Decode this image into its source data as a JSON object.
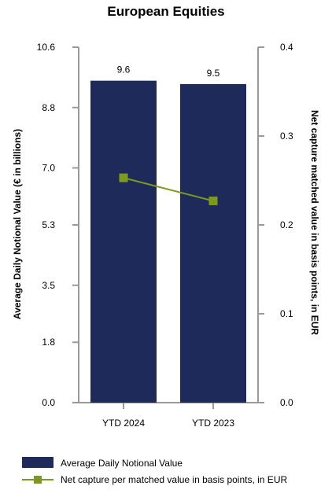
{
  "chart_data": {
    "type": "bar",
    "title": "European Equities",
    "categories": [
      "YTD 2024",
      "YTD 2023"
    ],
    "series": [
      {
        "name": "Average Daily Notional Value",
        "type": "bar",
        "axis": "left",
        "values": [
          9.6,
          9.5
        ],
        "data_labels": [
          "9.6",
          "9.5"
        ],
        "color": "#1e2a5a"
      },
      {
        "name": "Net capture per matched value in basis points, in EUR",
        "type": "line",
        "axis": "right",
        "values": [
          0.253,
          0.227
        ],
        "color": "#7c9a1e"
      }
    ],
    "y_left": {
      "label": "Average Daily Notional Value (€ in billions)",
      "min": 0,
      "max": 10.6,
      "ticks": [
        0.0,
        1.8,
        3.5,
        5.3,
        7.0,
        8.8,
        10.6
      ],
      "tick_labels": [
        "0.0",
        "1.8",
        "3.5",
        "5.3",
        "7.0",
        "8.8",
        "10.6"
      ]
    },
    "y_right": {
      "label": "Net capture matched value in basis points, in EUR",
      "min": 0,
      "max": 0.4,
      "ticks": [
        0.0,
        0.1,
        0.2,
        0.3,
        0.4
      ],
      "tick_labels": [
        "0.0",
        "0.1",
        "0.2",
        "0.3",
        "0.4"
      ]
    },
    "grid": false,
    "legend_position": "bottom-left"
  }
}
